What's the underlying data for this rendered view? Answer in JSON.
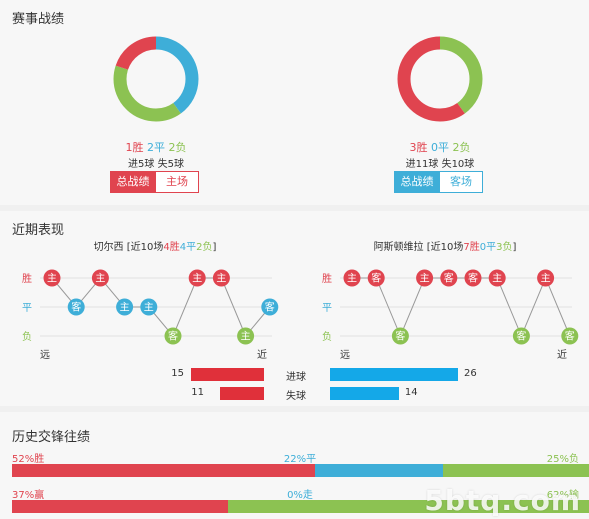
{
  "colors": {
    "win": "#e0444f",
    "draw": "#3eaed8",
    "loss": "#8cc252",
    "goal_bar_left": "#e0303a",
    "goal_bar_right": "#14a8e8"
  },
  "record": {
    "title": "赛事战绩",
    "home": {
      "wins": 1,
      "draws": 2,
      "losses": 2,
      "win_label": "1胜",
      "draw_label": "2平",
      "loss_label": "2负",
      "goals_line": "进5球  失5球",
      "btn_total": "总战绩",
      "btn_venue": "主场"
    },
    "away": {
      "wins": 3,
      "draws": 0,
      "losses": 2,
      "win_label": "3胜",
      "draw_label": "0平",
      "loss_label": "2负",
      "goals_line": "进11球  失10球",
      "btn_total": "总战绩",
      "btn_venue": "客场"
    }
  },
  "recent": {
    "title": "近期表现",
    "home": {
      "team": "切尔西",
      "prefix": "[近10场",
      "w": "4胜",
      "d": "4平",
      "l": "2负",
      "suffix": "]",
      "results": [
        "W",
        "D",
        "W",
        "D",
        "D",
        "L",
        "W",
        "W",
        "L",
        "D"
      ],
      "venues": [
        "主",
        "客",
        "主",
        "主",
        "主",
        "客",
        "主",
        "主",
        "主",
        "客"
      ]
    },
    "away": {
      "team": "阿斯顿维拉",
      "prefix": "[近10场",
      "w": "7胜",
      "d": "0平",
      "l": "3负",
      "suffix": "]",
      "results": [
        "W",
        "W",
        "L",
        "W",
        "W",
        "W",
        "W",
        "L",
        "W",
        "L"
      ],
      "venues": [
        "主",
        "客",
        "客",
        "主",
        "客",
        "客",
        "主",
        "客",
        "主",
        "客"
      ]
    },
    "row_labels": {
      "win": "胜",
      "draw": "平",
      "loss": "负"
    },
    "far": "远",
    "near": "近",
    "goals_for": {
      "label": "进球",
      "home": 15,
      "away": 26
    },
    "goals_against": {
      "label": "失球",
      "home": 11,
      "away": 14
    }
  },
  "h2h": {
    "title": "历史交锋往绩",
    "row1": {
      "win": 52,
      "draw": 22,
      "loss": 25,
      "win_label": "52%胜",
      "draw_label": "22%平",
      "loss_label": "25%负"
    },
    "row2": {
      "win": 37,
      "draw": 0,
      "loss": 62,
      "win_label": "37%赢",
      "draw_label": "0%走",
      "loss_label": "62%输"
    }
  },
  "watermark": "5btq.com"
}
